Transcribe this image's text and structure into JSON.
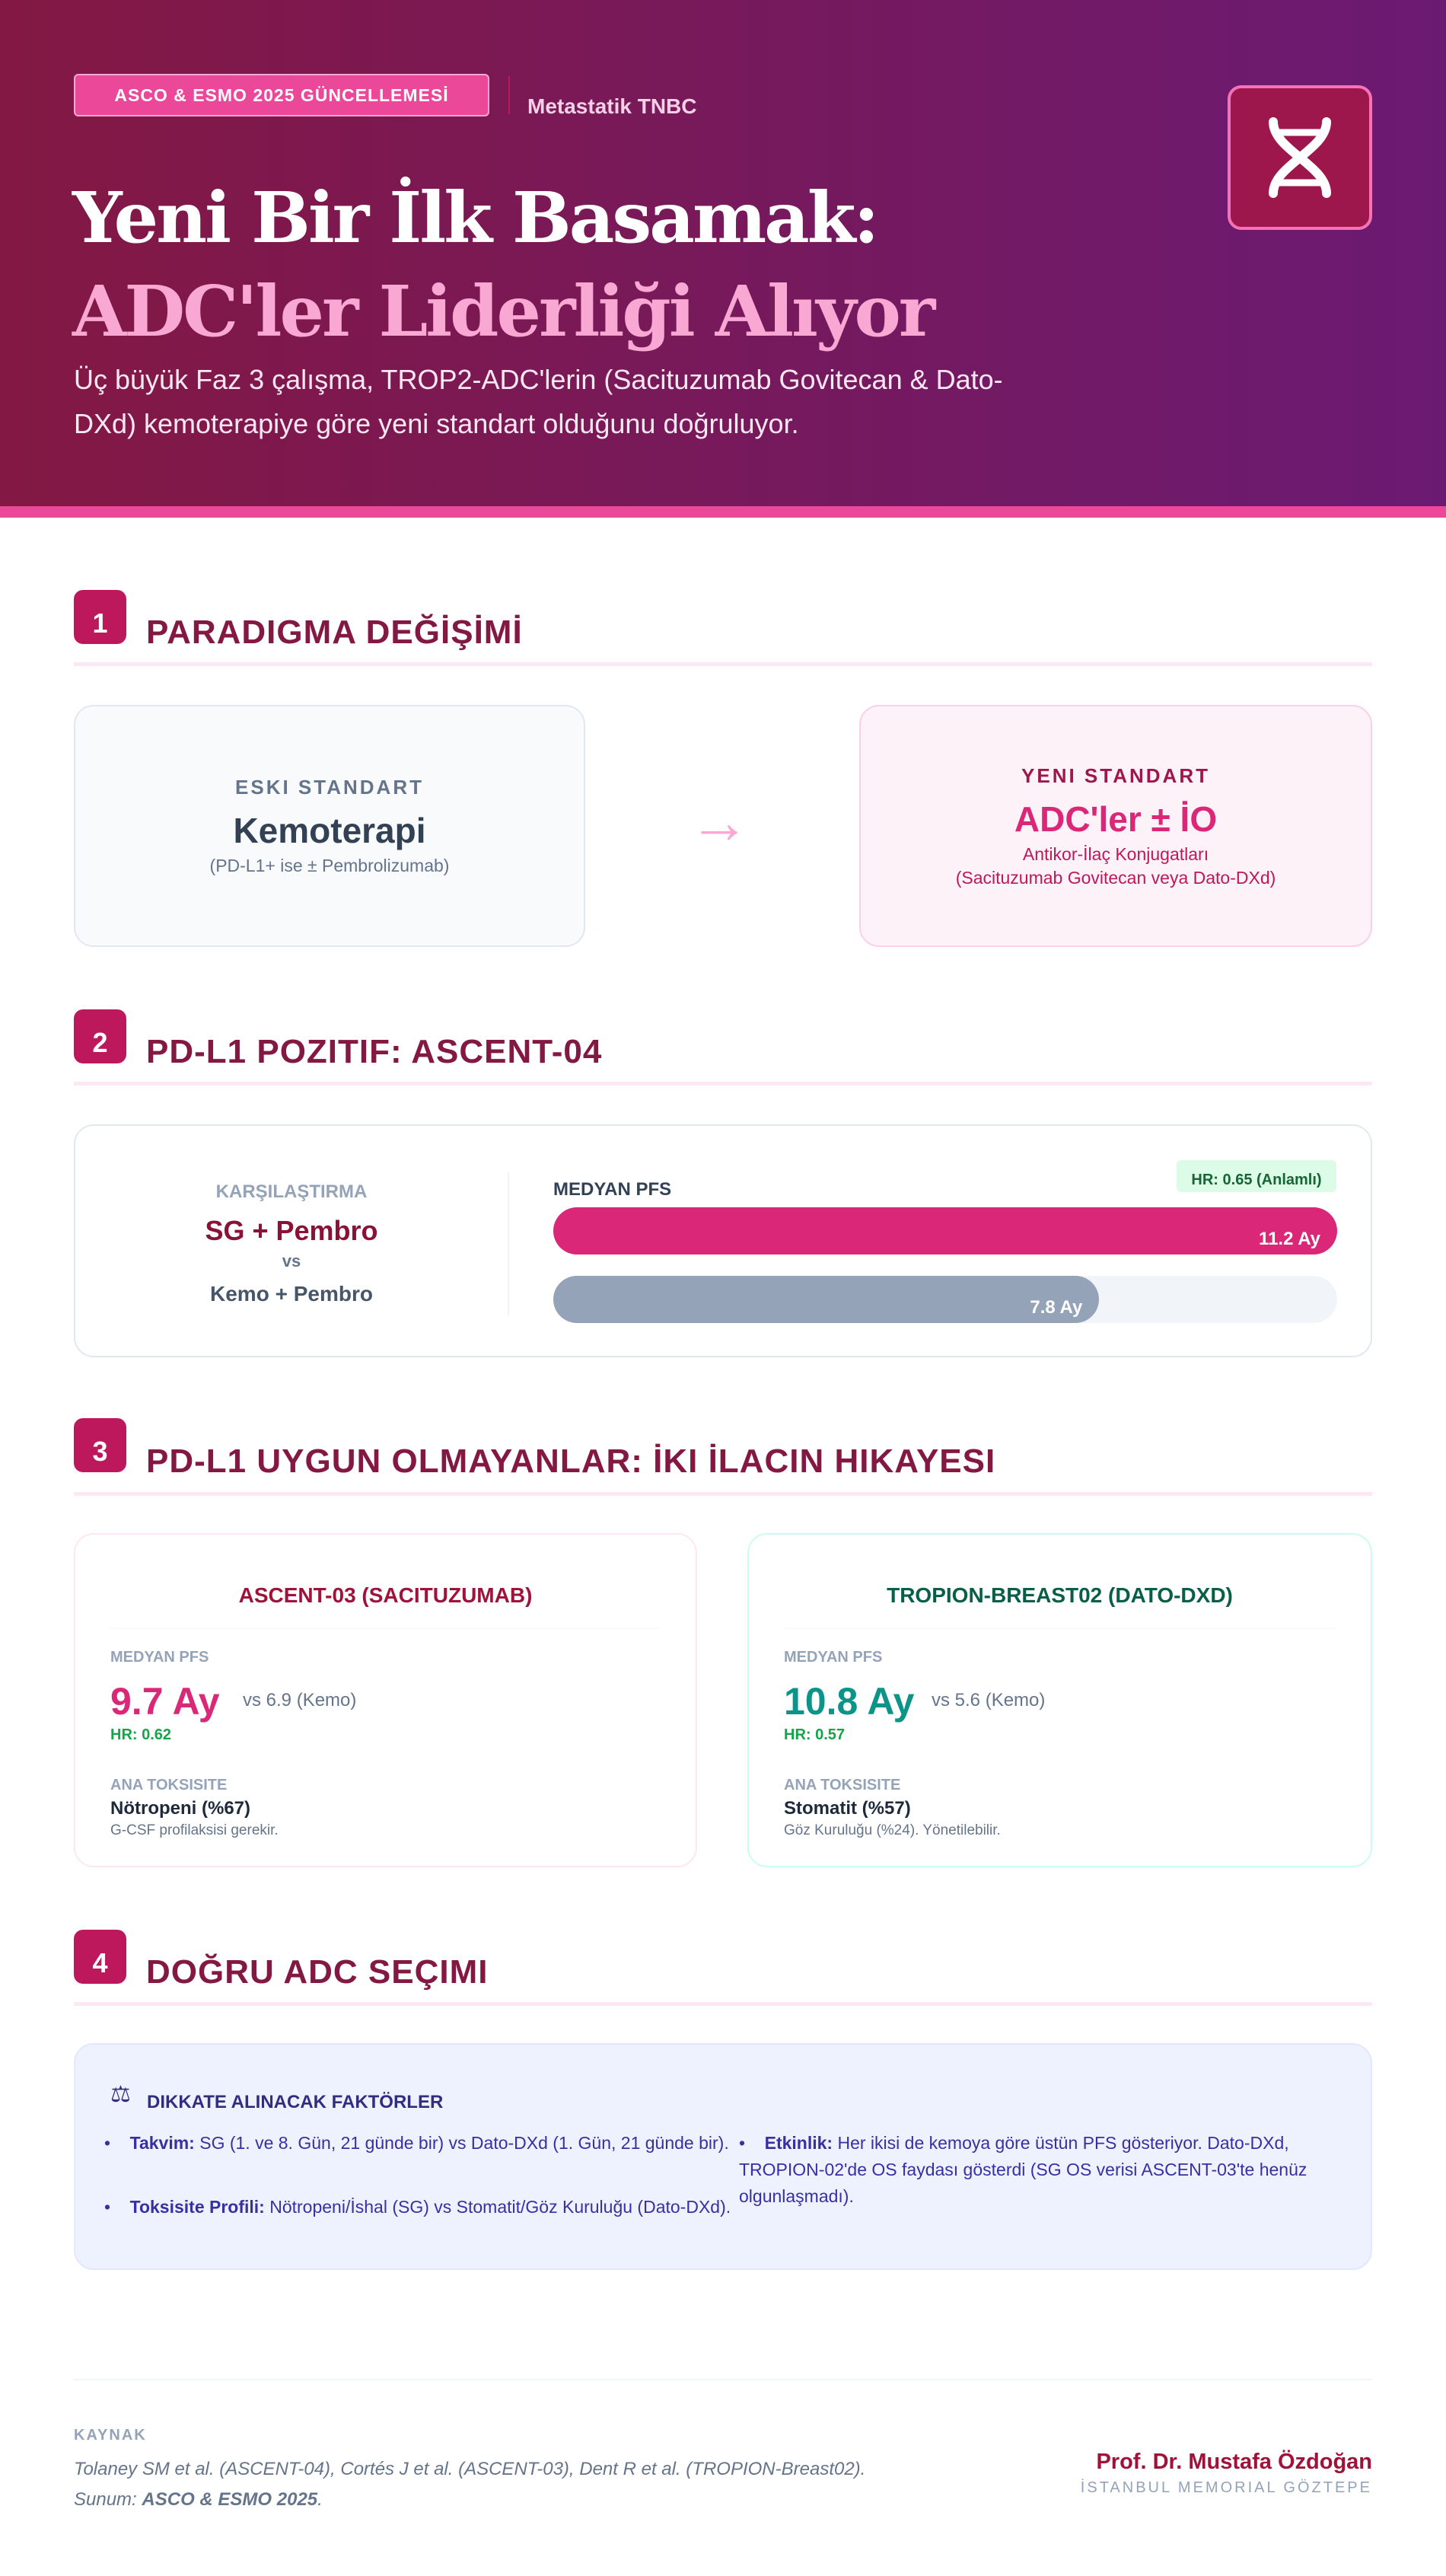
{
  "header": {
    "badge": "ASCO & ESMO 2025 GÜNCELLEMESİ",
    "topic": "Metastatik TNBC",
    "icon": "dna-icon",
    "title_line1": "Yeni Bir İlk Basamak:",
    "title_line2": "ADC'ler Liderliği Alıyor",
    "subtitle": "Üç büyük Faz 3 çalışma, TROP2-ADC'lerin (Sacituzumab Govitecan & Dato-DXd) kemoterapiye göre yeni standart olduğunu doğruluyor."
  },
  "sections": [
    {
      "num": "1",
      "title": "PARADIGMA DEĞİŞİMİ"
    },
    {
      "num": "2",
      "title": "PD-L1 POZITIF: ASCENT-04"
    },
    {
      "num": "3",
      "title": "PD-L1 UYGUN OLMAYANLAR: İKI İLACIN HIKAYESI"
    },
    {
      "num": "4",
      "title": "DOĞRU ADC SEÇIMI"
    }
  ],
  "paradigm": {
    "old": {
      "label": "ESKI STANDART",
      "main": "Kemoterapi",
      "note": "(PD-L1+ ise ± Pembrolizumab)"
    },
    "arrow": "→",
    "new": {
      "label": "YENI STANDART",
      "main": "ADC'ler ± İO",
      "note1": "Antikor-İlaç Konjugatları",
      "note2": "(Sacituzumab Govitecan veya Dato-DXd)"
    }
  },
  "ascent04": {
    "compare_label": "KARŞILAŞTIRMA",
    "arm1": "SG + Pembro",
    "vs": "vs",
    "arm2": "Kemo + Pembro",
    "pfs_label": "MEDYAN PFS",
    "hr": "HR: 0.65 (Anlamlı)",
    "bars": [
      {
        "value": 11.2,
        "label": "11.2 Ay",
        "color": "#db2777"
      },
      {
        "value": 7.8,
        "label": "7.8 Ay",
        "color": "#94a3b8"
      }
    ],
    "scale_max": 11.2
  },
  "trials": [
    {
      "title": "ASCENT-03 (SACITUZUMAB)",
      "pfs_label": "MEDYAN PFS",
      "pfs": "9.7 Ay",
      "vs": "vs 6.9 (Kemo)",
      "hr": "HR: 0.62",
      "tox_label": "ANA TOKSISITE",
      "tox": "Nötropeni (%67)",
      "tox_note": "G-CSF profilaksisi gerekir.",
      "color": "#db2777",
      "title_color": "#9f1239"
    },
    {
      "title": "TROPION-BREAST02 (DATO-DXD)",
      "pfs_label": "MEDYAN PFS",
      "pfs": "10.8 Ay",
      "vs": "vs 5.6 (Kemo)",
      "hr": "HR: 0.57",
      "tox_label": "ANA TOKSISITE",
      "tox": "Stomatit (%57)",
      "tox_note": "Göz Kuruluğu (%24). Yönetilebilir.",
      "color": "#0d9488",
      "title_color": "#065f46"
    }
  ],
  "factors": {
    "icon": "scale-icon",
    "title": "DIKKATE ALINACAK FAKTÖRLER",
    "items": [
      {
        "bold": "Takvim:",
        "text": " SG (1. ve 8. Gün, 21 günde bir) vs Dato-DXd (1. Gün, 21 günde bir)."
      },
      {
        "bold": "Toksisite Profili:",
        "text": " Nötropeni/İshal (SG) vs Stomatit/Göz Kuruluğu (Dato-DXd)."
      },
      {
        "bold": "Etkinlik:",
        "text": " Her ikisi de kemoya göre üstün PFS gösteriyor. Dato-DXd, TROPION-02'de OS faydası gösterdi (SG OS verisi ASCENT-03'te henüz olgunlaşmadı)."
      }
    ]
  },
  "footer": {
    "source_label": "KAYNAK",
    "source": "Tolaney SM et al. (ASCENT-04), Cortés J et al. (ASCENT-03), Dent R et al. (TROPION-Breast02).",
    "presented_prefix": "Sunum: ",
    "presented": "ASCO & ESMO 2025",
    "presented_suffix": ".",
    "author": "Prof. Dr. Mustafa Özdoğan",
    "institution": "İSTANBUL MEMORIAL GÖZTEPE"
  }
}
